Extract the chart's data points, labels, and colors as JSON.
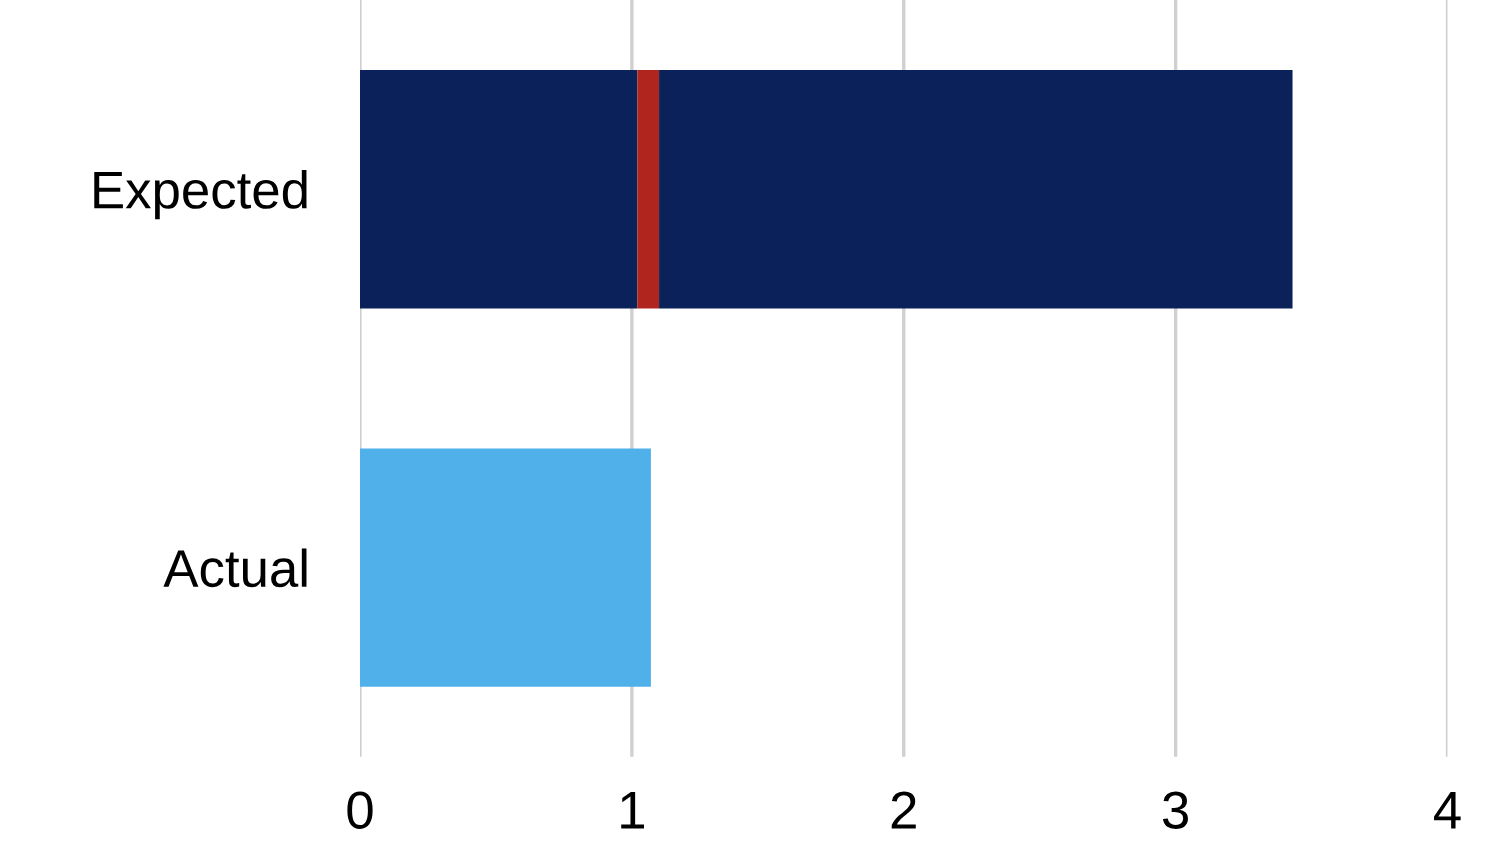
{
  "chart_data": {
    "type": "bar",
    "orientation": "horizontal",
    "stacked": true,
    "categories": [
      "Expected",
      "Actual"
    ],
    "series": [
      {
        "colors": [
          "#0a2259",
          "#4fb0ea"
        ],
        "values": [
          1.02,
          1.07
        ]
      },
      {
        "colors": [
          "#b0261e",
          null
        ],
        "values": [
          0.08,
          null
        ]
      },
      {
        "colors": [
          "#0a2259",
          null
        ],
        "values": [
          2.33,
          null
        ]
      }
    ],
    "xlim": [
      0,
      4
    ],
    "xticks": [
      0,
      1,
      2,
      3,
      4
    ],
    "grid": "x",
    "legend": false
  }
}
